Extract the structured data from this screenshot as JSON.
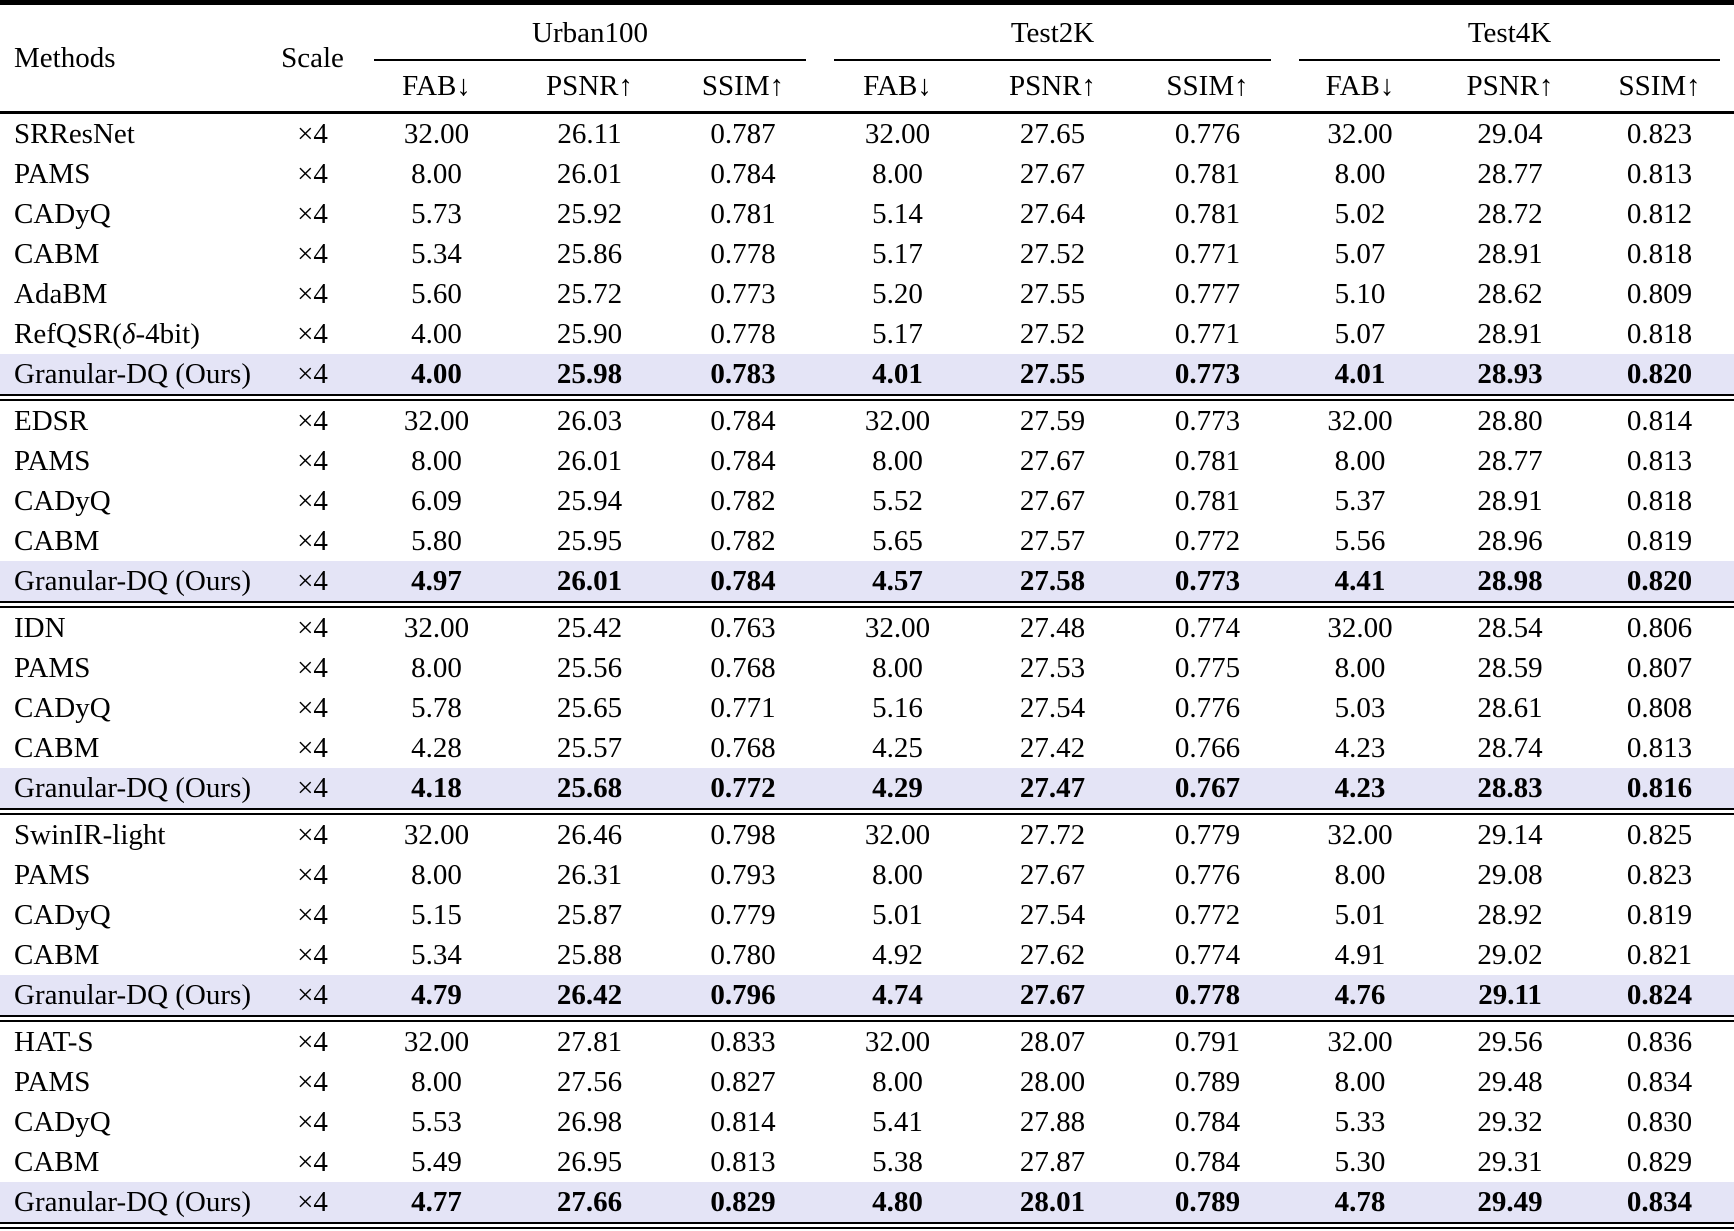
{
  "header": {
    "methods": "Methods",
    "scale": "Scale",
    "groups": [
      {
        "label": "Urban100",
        "sub": [
          "FAB↓",
          "PSNR↑",
          "SSIM↑"
        ]
      },
      {
        "label": "Test2K",
        "sub": [
          "FAB↓",
          "PSNR↑",
          "SSIM↑"
        ]
      },
      {
        "label": "Test4K",
        "sub": [
          "FAB↓",
          "PSNR↑",
          "SSIM↑"
        ]
      }
    ]
  },
  "body_groups": [
    {
      "rows": [
        {
          "method": "SRResNet",
          "scale": "×4",
          "highlight": false,
          "values": [
            "32.00",
            "26.11",
            "0.787",
            "32.00",
            "27.65",
            "0.776",
            "32.00",
            "29.04",
            "0.823"
          ]
        },
        {
          "method": "PAMS",
          "scale": "×4",
          "highlight": false,
          "values": [
            "8.00",
            "26.01",
            "0.784",
            "8.00",
            "27.67",
            "0.781",
            "8.00",
            "28.77",
            "0.813"
          ]
        },
        {
          "method": "CADyQ",
          "scale": "×4",
          "highlight": false,
          "values": [
            "5.73",
            "25.92",
            "0.781",
            "5.14",
            "27.64",
            "0.781",
            "5.02",
            "28.72",
            "0.812"
          ]
        },
        {
          "method": "CABM",
          "scale": "×4",
          "highlight": false,
          "values": [
            "5.34",
            "25.86",
            "0.778",
            "5.17",
            "27.52",
            "0.771",
            "5.07",
            "28.91",
            "0.818"
          ]
        },
        {
          "method": "AdaBM",
          "scale": "×4",
          "highlight": false,
          "values": [
            "5.60",
            "25.72",
            "0.773",
            "5.20",
            "27.55",
            "0.777",
            "5.10",
            "28.62",
            "0.809"
          ]
        },
        {
          "method": "RefQSR(δ-4bit)",
          "scale": "×4",
          "highlight": false,
          "values": [
            "4.00",
            "25.90",
            "0.778",
            "5.17",
            "27.52",
            "0.771",
            "5.07",
            "28.91",
            "0.818"
          ]
        },
        {
          "method": "Granular-DQ (Ours)",
          "scale": "×4",
          "highlight": true,
          "values": [
            "4.00",
            "25.98",
            "0.783",
            "4.01",
            "27.55",
            "0.773",
            "4.01",
            "28.93",
            "0.820"
          ]
        }
      ]
    },
    {
      "rows": [
        {
          "method": "EDSR",
          "scale": "×4",
          "highlight": false,
          "values": [
            "32.00",
            "26.03",
            "0.784",
            "32.00",
            "27.59",
            "0.773",
            "32.00",
            "28.80",
            "0.814"
          ]
        },
        {
          "method": "PAMS",
          "scale": "×4",
          "highlight": false,
          "values": [
            "8.00",
            "26.01",
            "0.784",
            "8.00",
            "27.67",
            "0.781",
            "8.00",
            "28.77",
            "0.813"
          ]
        },
        {
          "method": "CADyQ",
          "scale": "×4",
          "highlight": false,
          "values": [
            "6.09",
            "25.94",
            "0.782",
            "5.52",
            "27.67",
            "0.781",
            "5.37",
            "28.91",
            "0.818"
          ]
        },
        {
          "method": "CABM",
          "scale": "×4",
          "highlight": false,
          "values": [
            "5.80",
            "25.95",
            "0.782",
            "5.65",
            "27.57",
            "0.772",
            "5.56",
            "28.96",
            "0.819"
          ]
        },
        {
          "method": "Granular-DQ (Ours)",
          "scale": "×4",
          "highlight": true,
          "values": [
            "4.97",
            "26.01",
            "0.784",
            "4.57",
            "27.58",
            "0.773",
            "4.41",
            "28.98",
            "0.820"
          ]
        }
      ]
    },
    {
      "rows": [
        {
          "method": "IDN",
          "scale": "×4",
          "highlight": false,
          "values": [
            "32.00",
            "25.42",
            "0.763",
            "32.00",
            "27.48",
            "0.774",
            "32.00",
            "28.54",
            "0.806"
          ]
        },
        {
          "method": "PAMS",
          "scale": "×4",
          "highlight": false,
          "values": [
            "8.00",
            "25.56",
            "0.768",
            "8.00",
            "27.53",
            "0.775",
            "8.00",
            "28.59",
            "0.807"
          ]
        },
        {
          "method": "CADyQ",
          "scale": "×4",
          "highlight": false,
          "values": [
            "5.78",
            "25.65",
            "0.771",
            "5.16",
            "27.54",
            "0.776",
            "5.03",
            "28.61",
            "0.808"
          ]
        },
        {
          "method": "CABM",
          "scale": "×4",
          "highlight": false,
          "values": [
            "4.28",
            "25.57",
            "0.768",
            "4.25",
            "27.42",
            "0.766",
            "4.23",
            "28.74",
            "0.813"
          ]
        },
        {
          "method": "Granular-DQ (Ours)",
          "scale": "×4",
          "highlight": true,
          "values": [
            "4.18",
            "25.68",
            "0.772",
            "4.29",
            "27.47",
            "0.767",
            "4.23",
            "28.83",
            "0.816"
          ]
        }
      ]
    },
    {
      "rows": [
        {
          "method": "SwinIR-light",
          "scale": "×4",
          "highlight": false,
          "values": [
            "32.00",
            "26.46",
            "0.798",
            "32.00",
            "27.72",
            "0.779",
            "32.00",
            "29.14",
            "0.825"
          ]
        },
        {
          "method": "PAMS",
          "scale": "×4",
          "highlight": false,
          "values": [
            "8.00",
            "26.31",
            "0.793",
            "8.00",
            "27.67",
            "0.776",
            "8.00",
            "29.08",
            "0.823"
          ]
        },
        {
          "method": "CADyQ",
          "scale": "×4",
          "highlight": false,
          "values": [
            "5.15",
            "25.87",
            "0.779",
            "5.01",
            "27.54",
            "0.772",
            "5.01",
            "28.92",
            "0.819"
          ]
        },
        {
          "method": "CABM",
          "scale": "×4",
          "highlight": false,
          "values": [
            "5.34",
            "25.88",
            "0.780",
            "4.92",
            "27.62",
            "0.774",
            "4.91",
            "29.02",
            "0.821"
          ]
        },
        {
          "method": "Granular-DQ (Ours)",
          "scale": "×4",
          "highlight": true,
          "values": [
            "4.79",
            "26.42",
            "0.796",
            "4.74",
            "27.67",
            "0.778",
            "4.76",
            "29.11",
            "0.824"
          ]
        }
      ]
    },
    {
      "rows": [
        {
          "method": "HAT-S",
          "scale": "×4",
          "highlight": false,
          "values": [
            "32.00",
            "27.81",
            "0.833",
            "32.00",
            "28.07",
            "0.791",
            "32.00",
            "29.56",
            "0.836"
          ]
        },
        {
          "method": "PAMS",
          "scale": "×4",
          "highlight": false,
          "values": [
            "8.00",
            "27.56",
            "0.827",
            "8.00",
            "28.00",
            "0.789",
            "8.00",
            "29.48",
            "0.834"
          ]
        },
        {
          "method": "CADyQ",
          "scale": "×4",
          "highlight": false,
          "values": [
            "5.53",
            "26.98",
            "0.814",
            "5.41",
            "27.88",
            "0.784",
            "5.33",
            "29.32",
            "0.830"
          ]
        },
        {
          "method": "CABM",
          "scale": "×4",
          "highlight": false,
          "values": [
            "5.49",
            "26.95",
            "0.813",
            "5.38",
            "27.87",
            "0.784",
            "5.30",
            "29.31",
            "0.829"
          ]
        },
        {
          "method": "Granular-DQ (Ours)",
          "scale": "×4",
          "highlight": true,
          "values": [
            "4.77",
            "27.66",
            "0.829",
            "4.80",
            "28.01",
            "0.789",
            "4.78",
            "29.49",
            "0.834"
          ]
        }
      ]
    }
  ],
  "style": {
    "highlight_color": "#e4e4f6",
    "text_color": "#000000",
    "background_color": "#ffffff"
  }
}
